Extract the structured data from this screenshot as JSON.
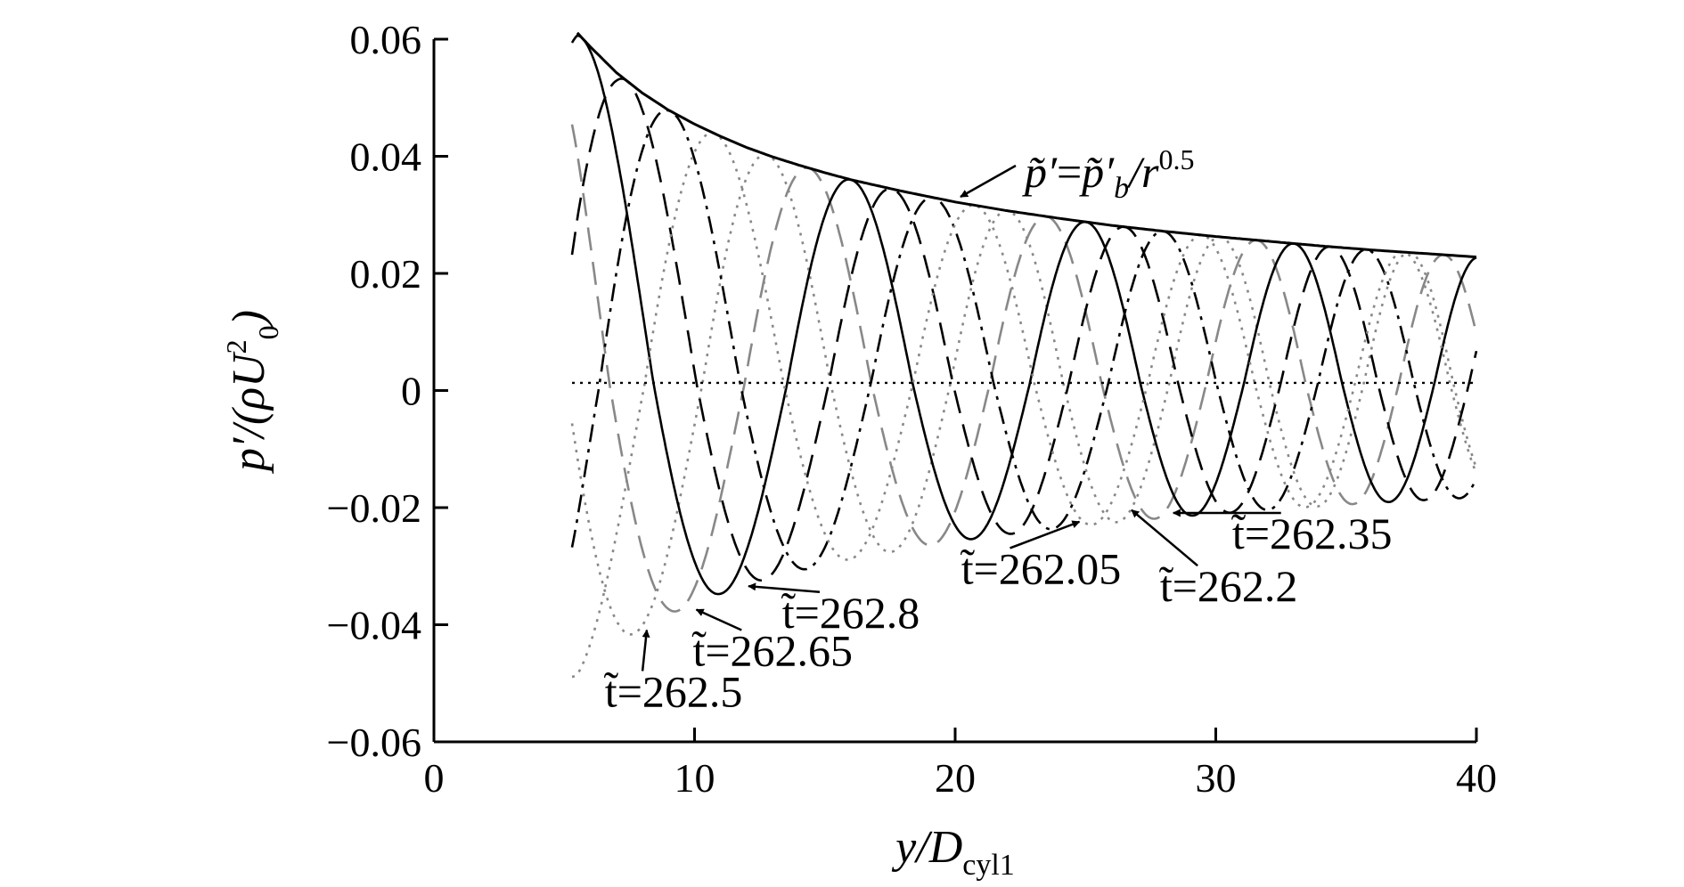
{
  "chart_data": {
    "type": "line",
    "xlabel": {
      "main": "y/D",
      "sub": "cyl1"
    },
    "ylabel": {
      "pre": "p′/(ρU",
      "sup": "2",
      "sub": "0",
      "post": ")"
    },
    "xlim": [
      0,
      40
    ],
    "ylim": [
      -0.06,
      0.06
    ],
    "xticks": [
      0,
      10,
      20,
      30,
      40
    ],
    "xtick_labels": [
      "0",
      "10",
      "20",
      "30",
      "40"
    ],
    "yticks": [
      0.06,
      0.04,
      0.02,
      0,
      -0.02,
      -0.04,
      -0.06
    ],
    "ytick_labels": [
      "0.06",
      "0.04",
      "0.02",
      "0",
      "−0.02",
      "−0.04",
      "−0.06"
    ],
    "grid": false,
    "envelope": {
      "label": "p̃′=p̃′b/r0.5",
      "label_parts": {
        "lhs": "p̃′",
        "eq": "=",
        "rhs": "p̃′",
        "sub": "b",
        "div": "/r",
        "sup": "0.5"
      },
      "x": [
        5.5,
        6,
        7,
        8,
        9,
        10,
        11,
        12,
        13,
        14,
        15,
        16,
        18,
        20,
        22,
        24,
        26,
        28,
        30,
        32,
        34,
        36,
        38,
        40
      ],
      "y": [
        0.0611,
        0.0587,
        0.0543,
        0.0508,
        0.0479,
        0.0455,
        0.0434,
        0.0415,
        0.0399,
        0.0385,
        0.0372,
        0.036,
        0.034,
        0.0322,
        0.0307,
        0.0294,
        0.0282,
        0.0272,
        0.0263,
        0.0255,
        0.0247,
        0.024,
        0.0234,
        0.0228
      ]
    },
    "zero_line": {
      "y": 0.0013
    },
    "series": [
      {
        "name": "t̃=262.05",
        "color": "#888888",
        "dash": "dotted",
        "phase": 2.3
      },
      {
        "name": "t̃=262.2",
        "color": "#888888",
        "dash": "dashed",
        "phase": 4.0
      },
      {
        "name": "t̃=262.35",
        "color": "#000000",
        "dash": "solid",
        "phase": 5.72
      },
      {
        "name": "t̃=262.5",
        "color": "#000000",
        "dash": "dashed",
        "phase": 7.4
      },
      {
        "name": "t̃=262.65",
        "color": "#000000",
        "dash": "dashdot",
        "phase": 9.1
      },
      {
        "name": "t̃=262.8",
        "color": "#888888",
        "dash": "dotted",
        "phase": 10.8
      }
    ],
    "annotations": [
      {
        "text": "t̃=262.5",
        "point": [
          8.1,
          -0.04
        ],
        "text_at": [
          9.2,
          -0.054
        ]
      },
      {
        "text": "t̃=262.65",
        "point": [
          10.0,
          -0.0365
        ],
        "text_at": [
          13.0,
          -0.047
        ]
      },
      {
        "text": "t̃=262.8",
        "point": [
          12.0,
          -0.0325
        ],
        "text_at": [
          16.0,
          -0.0405
        ]
      },
      {
        "text": "t̃=262.05",
        "point": [
          24.7,
          -0.0215
        ],
        "text_at": [
          23.3,
          -0.033
        ]
      },
      {
        "text": "t̃=262.2",
        "point": [
          26.7,
          -0.0195
        ],
        "text_at": [
          30.5,
          -0.036
        ]
      },
      {
        "text": "t̃=262.35",
        "point": [
          28.3,
          -0.02
        ],
        "text_at": [
          33.7,
          -0.027
        ]
      }
    ]
  }
}
